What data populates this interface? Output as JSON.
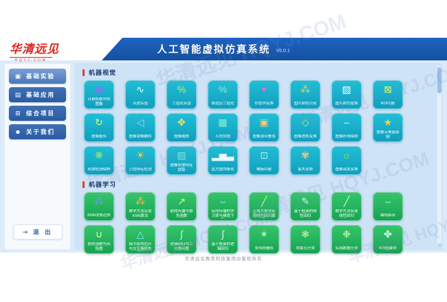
{
  "watermark_text": "华清远见 HQYJ.COM",
  "header": {
    "logo_main": "华清远见",
    "logo_sub": "HQYJ.COM",
    "title": "人工智能虚拟仿真系统",
    "version": "V5.0.1"
  },
  "sidebar": {
    "items": [
      {
        "label": "基础实验",
        "icon": "experiment-icon",
        "glyph": "▣",
        "active": true
      },
      {
        "label": "基础应用",
        "icon": "application-icon",
        "glyph": "▤",
        "active": false
      },
      {
        "label": "综合项目",
        "icon": "projects-icon",
        "glyph": "⊞",
        "active": false
      },
      {
        "label": "关于我们",
        "icon": "about-us-icon",
        "glyph": "☻",
        "active": false
      }
    ],
    "logout_label": "退 出",
    "logout_icon_glyph": "⇥"
  },
  "sections": [
    {
      "title": "机器视觉",
      "theme": "vision",
      "tiles": [
        {
          "label": "计算机眼中的图像",
          "icon": "monitor-eye-icon",
          "glyph": "◉",
          "color": "#9a6bf7"
        },
        {
          "label": "灰度实验",
          "icon": "grayscale-wave-icon",
          "glyph": "∿",
          "color": "#ffffff"
        },
        {
          "label": "二值化实验",
          "icon": "binarize-percent-icon",
          "glyph": "%",
          "color": "#baf06e"
        },
        {
          "label": "自适应二值化",
          "icon": "adaptive-binarize-icon",
          "glyph": "%",
          "color": "#8df0cf"
        },
        {
          "label": "形态学变换",
          "icon": "morphology-icon",
          "glyph": "✦",
          "color": "#ff63d4"
        },
        {
          "label": "图片颜色识别",
          "icon": "color-dots-icon",
          "glyph": "⁂",
          "color": "#ffd23f"
        },
        {
          "label": "图片颜色替换",
          "icon": "picture-frame-icon",
          "glyph": "▨",
          "color": "#ffffff"
        },
        {
          "label": "ROI切割",
          "icon": "roi-crop-icon",
          "glyph": "⊠",
          "color": "#e9ff63"
        },
        {
          "label": "图像旋转",
          "icon": "rotate-icon",
          "glyph": "↻",
          "color": "#d9ff66"
        },
        {
          "label": "图像镜像翻转",
          "icon": "flip-icon",
          "glyph": "◁",
          "color": "#a5dbff"
        },
        {
          "label": "图像缩放",
          "icon": "zoom-arrows-icon",
          "glyph": "✥",
          "color": "#ffe45e"
        },
        {
          "label": "五官拼图",
          "icon": "mosaic-grid-icon",
          "glyph": "▦",
          "color": "#8df0cf"
        },
        {
          "label": "图像混合叠加",
          "icon": "blend-image-icon",
          "glyph": "▣",
          "color": "#ffc97d"
        },
        {
          "label": "图像透视变换",
          "icon": "perspective-diamond-icon",
          "glyph": "◇",
          "color": "#c0f381"
        },
        {
          "label": "图像折线绘制",
          "icon": "polyline-chart-icon",
          "glyph": "⌢",
          "color": "#e3f0ff"
        },
        {
          "label": "图像五角星绘制",
          "icon": "star-icon",
          "glyph": "★",
          "color": "#ffd23f"
        },
        {
          "label": "轮廓检测绘制",
          "icon": "contour-splash-icon",
          "glyph": "❋",
          "color": "#93f06e"
        },
        {
          "label": "凸包特征检测",
          "icon": "convex-hull-sun-icon",
          "glyph": "☀",
          "color": "#ffd23f"
        },
        {
          "label": "图像轮廓特征提取",
          "icon": "contour-feature-icon",
          "glyph": "▧",
          "color": "#84e9d4"
        },
        {
          "label": "直方图均衡化",
          "icon": "histogram-bars-icon",
          "glyph": "▂▅▃",
          "color": "#eaf7ff"
        },
        {
          "label": "模板匹配",
          "icon": "template-match-icon",
          "glyph": "⊡",
          "color": "#aef3e9"
        },
        {
          "label": "霍夫变换",
          "icon": "hough-transform-icon",
          "glyph": "✾",
          "color": "#ffc97d"
        },
        {
          "label": "图像亮度变换",
          "icon": "brightness-icon",
          "glyph": "☼",
          "color": "#93f06e"
        }
      ]
    },
    {
      "title": "机器学习",
      "theme": "ml",
      "tiles": [
        {
          "label": "KNN决策边界",
          "icon": "knn-scatter-icon",
          "glyph": "⁂",
          "color": "#6e97ff"
        },
        {
          "label": "数学方法实现KNN算法",
          "icon": "knn-math-scatter-icon",
          "glyph": "⁂",
          "color": "#ffb74a"
        },
        {
          "label": "前向传播与损失函数",
          "icon": "forward-propagation-icon",
          "glyph": "↗",
          "color": "#f5ff70"
        },
        {
          "label": "反向传播的学习率与梯度下降",
          "icon": "gradient-descent-icon",
          "glyph": "⌣",
          "color": "#86eeff"
        },
        {
          "label": "正规方程法实现线性回归算法",
          "icon": "linear-regression-line-icon",
          "glyph": "╱",
          "color": "#c2ff85"
        },
        {
          "label": "基于框架的线性回归",
          "icon": "framework-regression-icon",
          "glyph": "✎",
          "color": "#dcffe9"
        },
        {
          "label": "数学方法实现线性回归",
          "icon": "math-regression-icon",
          "glyph": "╱",
          "color": "#c7ffd6"
        },
        {
          "label": "曲线拟合",
          "icon": "curve-fitting-icon",
          "glyph": "⌣",
          "color": "#b2fcff"
        },
        {
          "label": "损失函数与风险图",
          "icon": "loss-risk-curve-icon",
          "glyph": "∪",
          "color": "#ecffa0"
        },
        {
          "label": "极大似然估计与交叉熵损失函数",
          "icon": "likelihood-triangle-icon",
          "glyph": "△",
          "color": "#86eeff"
        },
        {
          "label": "逻辑回归与二分类问题",
          "icon": "sigmoid-curve-icon",
          "glyph": "∫",
          "color": "#b2fcff"
        },
        {
          "label": "基于框架的逻辑回归",
          "icon": "framework-sigmoid-icon",
          "glyph": "∫",
          "color": "#d6ffe3"
        },
        {
          "label": "支持向量机",
          "icon": "svm-margin-icon",
          "glyph": "✶",
          "color": "#c4ffd9"
        },
        {
          "label": "鸢尾花分类",
          "icon": "iris-classify-icon",
          "glyph": "❃",
          "color": "#b4f3a3"
        },
        {
          "label": "实战数据分类",
          "icon": "data-classify-icon",
          "glyph": "❉",
          "color": "#ccf7b4"
        },
        {
          "label": "K均值聚类",
          "icon": "kmeans-cluster-icon",
          "glyph": "✤",
          "color": "#ddffe8"
        }
      ]
    }
  ],
  "scrollbar": {
    "grip_glyph": "⠿"
  },
  "footer": {
    "copyright": "华清远见教育科技集团@版权所有"
  }
}
